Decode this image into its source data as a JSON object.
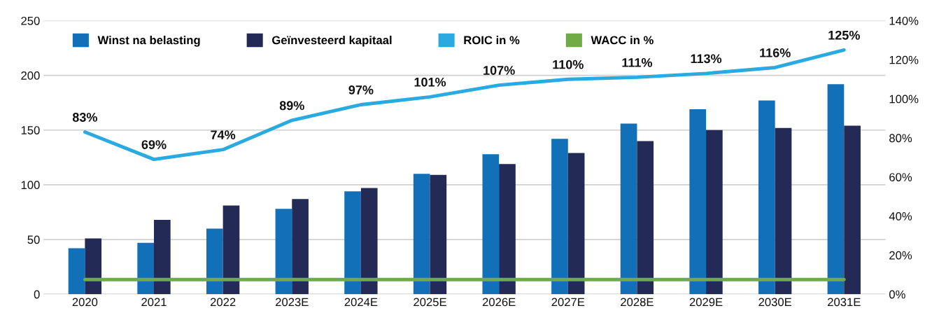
{
  "chart_data": {
    "type": "bar",
    "categories": [
      "2020",
      "2021",
      "2022",
      "2023E",
      "2024E",
      "2025E",
      "2026E",
      "2027E",
      "2028E",
      "2029E",
      "2030E",
      "2031E"
    ],
    "series": [
      {
        "name": "Winst na belasting",
        "color": "#1170b8",
        "values": [
          42,
          47,
          60,
          78,
          94,
          110,
          128,
          142,
          156,
          169,
          177,
          192
        ]
      },
      {
        "name": "Geïnvesteerd kapitaal",
        "color": "#232a55",
        "values": [
          51,
          68,
          81,
          87,
          97,
          109,
          119,
          129,
          140,
          150,
          152,
          154
        ]
      },
      {
        "name": "ROIC in %",
        "color": "#29abe2",
        "type": "line",
        "axis": "y2",
        "values": [
          83,
          69,
          74,
          89,
          97,
          101,
          107,
          110,
          111,
          113,
          116,
          125
        ],
        "value_labels": [
          "83%",
          "69%",
          "74%",
          "89%",
          "97%",
          "101%",
          "107%",
          "110%",
          "111%",
          "113%",
          "116%",
          "125%"
        ]
      },
      {
        "name": "WACC in %",
        "color": "#6fac46",
        "type": "line",
        "axis": "y2",
        "values": [
          7.5,
          7.5,
          7.5,
          7.5,
          7.5,
          7.5,
          7.5,
          7.5,
          7.5,
          7.5,
          7.5,
          7.5
        ]
      }
    ],
    "ylim": [
      0,
      250
    ],
    "yticks": [
      0,
      50,
      100,
      150,
      200,
      250
    ],
    "y2lim": [
      0,
      140
    ],
    "y2ticks": [
      {
        "value": 0,
        "label": "0%"
      },
      {
        "value": 20,
        "label": "20%"
      },
      {
        "value": 40,
        "label": "40%"
      },
      {
        "value": 60,
        "label": "60%"
      },
      {
        "value": 80,
        "label": "80%"
      },
      {
        "value": 100,
        "label": "100%"
      },
      {
        "value": 120,
        "label": "120%"
      },
      {
        "value": 140,
        "label": "140%"
      }
    ],
    "grid": "y",
    "legend": "top"
  }
}
